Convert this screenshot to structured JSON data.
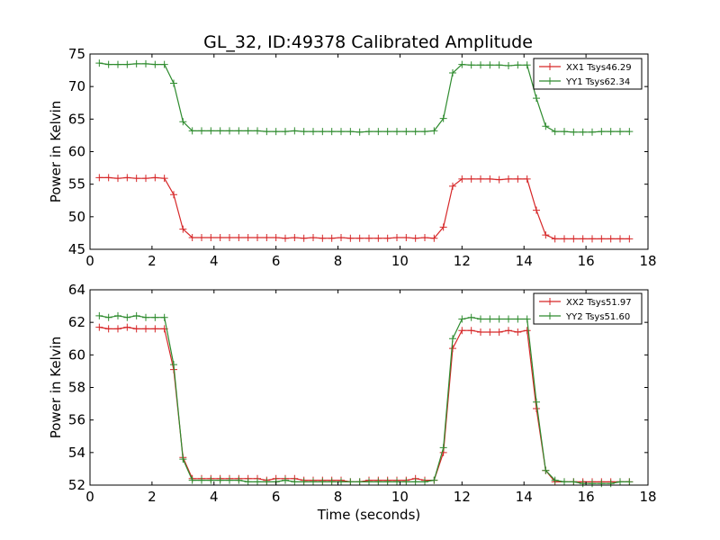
{
  "chart_data": [
    {
      "type": "line",
      "title": "GL_32, ID:49378 Calibrated Amplitude",
      "xlabel": "",
      "ylabel": "Power in Kelvin",
      "xlim": [
        0,
        18
      ],
      "ylim": [
        45,
        75
      ],
      "xticks": [
        "0",
        "2",
        "4",
        "6",
        "8",
        "10",
        "12",
        "14",
        "16",
        "18"
      ],
      "yticks": [
        "45",
        "50",
        "55",
        "60",
        "65",
        "70",
        "75"
      ],
      "grid": false,
      "legend_position": "top-right",
      "x": [
        0.3,
        0.6,
        0.9,
        1.2,
        1.5,
        1.8,
        2.1,
        2.4,
        2.7,
        3.0,
        3.3,
        3.6,
        3.9,
        4.2,
        4.5,
        4.8,
        5.1,
        5.4,
        5.7,
        6.0,
        6.3,
        6.6,
        6.9,
        7.2,
        7.5,
        7.8,
        8.1,
        8.4,
        8.7,
        9.0,
        9.3,
        9.6,
        9.9,
        10.2,
        10.5,
        10.8,
        11.1,
        11.4,
        11.7,
        12.0,
        12.3,
        12.6,
        12.9,
        13.2,
        13.5,
        13.8,
        14.1,
        14.4,
        14.7,
        15.0,
        15.3,
        15.6,
        15.9,
        16.2,
        16.5,
        16.8,
        17.1,
        17.4
      ],
      "series": [
        {
          "name": "XX1 Tsys46.29",
          "color": "#d62728",
          "values": [
            56.0,
            56.0,
            55.9,
            56.0,
            55.9,
            55.9,
            56.0,
            55.9,
            53.4,
            48.1,
            46.8,
            46.8,
            46.8,
            46.8,
            46.8,
            46.8,
            46.8,
            46.8,
            46.8,
            46.8,
            46.7,
            46.8,
            46.7,
            46.8,
            46.7,
            46.7,
            46.8,
            46.7,
            46.7,
            46.7,
            46.7,
            46.7,
            46.8,
            46.8,
            46.7,
            46.8,
            46.7,
            48.4,
            54.7,
            55.8,
            55.8,
            55.8,
            55.8,
            55.7,
            55.8,
            55.8,
            55.8,
            51.0,
            47.2,
            46.6,
            46.6,
            46.6,
            46.6,
            46.6,
            46.6,
            46.6,
            46.6,
            46.6
          ]
        },
        {
          "name": "YY1 Tsys62.34",
          "color": "#2e8b2e",
          "values": [
            73.6,
            73.4,
            73.4,
            73.4,
            73.5,
            73.5,
            73.4,
            73.4,
            70.5,
            64.6,
            63.2,
            63.2,
            63.2,
            63.2,
            63.2,
            63.2,
            63.2,
            63.2,
            63.1,
            63.1,
            63.1,
            63.2,
            63.1,
            63.1,
            63.1,
            63.1,
            63.1,
            63.1,
            63.0,
            63.1,
            63.1,
            63.1,
            63.1,
            63.1,
            63.1,
            63.1,
            63.2,
            65.1,
            72.1,
            73.4,
            73.3,
            73.3,
            73.3,
            73.3,
            73.2,
            73.3,
            73.3,
            68.2,
            63.9,
            63.1,
            63.1,
            63.0,
            63.0,
            63.0,
            63.1,
            63.1,
            63.1,
            63.1
          ]
        }
      ]
    },
    {
      "type": "line",
      "title": "",
      "xlabel": "Time (seconds)",
      "ylabel": "Power in Kelvin",
      "xlim": [
        0,
        18
      ],
      "ylim": [
        52,
        64
      ],
      "xticks": [
        "0",
        "2",
        "4",
        "6",
        "8",
        "10",
        "12",
        "14",
        "16",
        "18"
      ],
      "yticks": [
        "52",
        "54",
        "56",
        "58",
        "60",
        "62",
        "64"
      ],
      "grid": false,
      "legend_position": "top-right",
      "x": [
        0.3,
        0.6,
        0.9,
        1.2,
        1.5,
        1.8,
        2.1,
        2.4,
        2.7,
        3.0,
        3.3,
        3.6,
        3.9,
        4.2,
        4.5,
        4.8,
        5.1,
        5.4,
        5.7,
        6.0,
        6.3,
        6.6,
        6.9,
        7.2,
        7.5,
        7.8,
        8.1,
        8.4,
        8.7,
        9.0,
        9.3,
        9.6,
        9.9,
        10.2,
        10.5,
        10.8,
        11.1,
        11.4,
        11.7,
        12.0,
        12.3,
        12.6,
        12.9,
        13.2,
        13.5,
        13.8,
        14.1,
        14.4,
        14.7,
        15.0,
        15.3,
        15.6,
        15.9,
        16.2,
        16.5,
        16.8,
        17.1,
        17.4
      ],
      "series": [
        {
          "name": "XX2 Tsys51.97",
          "color": "#d62728",
          "values": [
            61.7,
            61.6,
            61.6,
            61.7,
            61.6,
            61.6,
            61.6,
            61.6,
            59.1,
            53.7,
            52.4,
            52.4,
            52.4,
            52.4,
            52.4,
            52.4,
            52.4,
            52.4,
            52.3,
            52.4,
            52.4,
            52.4,
            52.3,
            52.3,
            52.3,
            52.3,
            52.3,
            52.2,
            52.2,
            52.3,
            52.3,
            52.3,
            52.3,
            52.3,
            52.4,
            52.3,
            52.3,
            54.0,
            60.4,
            61.5,
            61.5,
            61.4,
            61.4,
            61.4,
            61.5,
            61.4,
            61.5,
            56.7,
            52.9,
            52.2,
            52.2,
            52.2,
            52.2,
            52.2,
            52.2,
            52.2,
            52.2,
            52.2
          ]
        },
        {
          "name": "YY2 Tsys51.60",
          "color": "#2e8b2e",
          "values": [
            62.4,
            62.3,
            62.4,
            62.3,
            62.4,
            62.3,
            62.3,
            62.3,
            59.4,
            53.6,
            52.3,
            52.3,
            52.3,
            52.3,
            52.3,
            52.3,
            52.2,
            52.2,
            52.2,
            52.2,
            52.3,
            52.2,
            52.2,
            52.2,
            52.2,
            52.2,
            52.2,
            52.2,
            52.2,
            52.2,
            52.2,
            52.2,
            52.2,
            52.2,
            52.2,
            52.2,
            52.3,
            54.3,
            61.0,
            62.2,
            62.3,
            62.2,
            62.2,
            62.2,
            62.2,
            62.2,
            62.2,
            57.1,
            52.9,
            52.3,
            52.2,
            52.2,
            52.1,
            52.1,
            52.1,
            52.1,
            52.2,
            52.2
          ]
        }
      ]
    }
  ]
}
